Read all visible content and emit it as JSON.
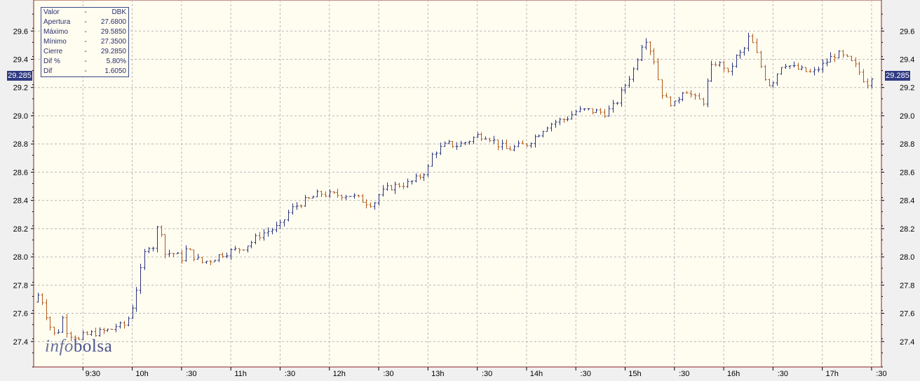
{
  "legend": {
    "rows": [
      {
        "k": "Valor",
        "v": "DBK"
      },
      {
        "k": "Apertura",
        "v": "27.6800"
      },
      {
        "k": "Máximo",
        "v": "29.5850"
      },
      {
        "k": "Mínimo",
        "v": "27.3500"
      },
      {
        "k": "Cierre",
        "v": "29.2850"
      },
      {
        "k": "Dif %",
        "v": "5.80%"
      },
      {
        "k": "Dif",
        "v": "1.6050"
      }
    ],
    "dash": "-"
  },
  "last_price_label": "29.285",
  "brand": {
    "part1": "info",
    "part2": "bolsa"
  },
  "colors": {
    "background": "#fffcf0",
    "frame": "#8b2020",
    "up": "#2a3580",
    "down": "#b05a1a",
    "grid": "#b8b8b8",
    "badge": "#2f3a82"
  },
  "chart_data": {
    "type": "ohlc",
    "title": "",
    "xlabel": "",
    "ylabel": "",
    "ylim": [
      27.22,
      29.82
    ],
    "grid": true,
    "y_ticks": [
      "27.4",
      "27.6",
      "27.8",
      "28.0",
      "28.2",
      "28.4",
      "28.6",
      "28.8",
      "29.0",
      "29.2",
      "29.4",
      "29.6"
    ],
    "x_tick_labels": [
      "9:30",
      "10h",
      ":30",
      "11h",
      ":30",
      "12h",
      ":30",
      "13h",
      ":30",
      "14h",
      ":30",
      "15h",
      ":30",
      "16h",
      ":30",
      "17h",
      ":30"
    ],
    "x_tick_times": [
      9.5,
      10,
      10.5,
      11,
      11.5,
      12,
      12.5,
      13,
      13.5,
      14,
      14.5,
      15,
      15.5,
      16,
      16.5,
      17,
      17.5
    ],
    "time_range": [
      9.0,
      17.6
    ],
    "price_path": [
      [
        9.0,
        27.68
      ],
      [
        9.05,
        27.74
      ],
      [
        9.1,
        27.66
      ],
      [
        9.15,
        27.52
      ],
      [
        9.2,
        27.48
      ],
      [
        9.23,
        27.38
      ],
      [
        9.27,
        27.58
      ],
      [
        9.3,
        27.56
      ],
      [
        9.35,
        27.44
      ],
      [
        9.4,
        27.46
      ],
      [
        9.45,
        27.4
      ],
      [
        9.5,
        27.44
      ],
      [
        9.6,
        27.46
      ],
      [
        9.7,
        27.47
      ],
      [
        9.8,
        27.49
      ],
      [
        9.85,
        27.52
      ],
      [
        9.9,
        27.5
      ],
      [
        9.95,
        27.55
      ],
      [
        10.0,
        27.65
      ],
      [
        10.05,
        27.8
      ],
      [
        10.1,
        27.95
      ],
      [
        10.15,
        28.1
      ],
      [
        10.2,
        28.05
      ],
      [
        10.25,
        28.2
      ],
      [
        10.28,
        28.25
      ],
      [
        10.32,
        28.02
      ],
      [
        10.4,
        28.03
      ],
      [
        10.5,
        27.99
      ],
      [
        10.55,
        28.06
      ],
      [
        10.6,
        28.02
      ],
      [
        10.7,
        27.96
      ],
      [
        10.8,
        27.98
      ],
      [
        10.9,
        28.02
      ],
      [
        11.0,
        28.04
      ],
      [
        11.1,
        28.06
      ],
      [
        11.2,
        28.1
      ],
      [
        11.3,
        28.16
      ],
      [
        11.4,
        28.19
      ],
      [
        11.5,
        28.22
      ],
      [
        11.6,
        28.33
      ],
      [
        11.7,
        28.38
      ],
      [
        11.8,
        28.41
      ],
      [
        11.9,
        28.45
      ],
      [
        12.0,
        28.44
      ],
      [
        12.1,
        28.44
      ],
      [
        12.2,
        28.44
      ],
      [
        12.3,
        28.41
      ],
      [
        12.4,
        28.38
      ],
      [
        12.45,
        28.38
      ],
      [
        12.5,
        28.44
      ],
      [
        12.6,
        28.49
      ],
      [
        12.7,
        28.51
      ],
      [
        12.8,
        28.52
      ],
      [
        12.9,
        28.56
      ],
      [
        13.0,
        28.63
      ],
      [
        13.05,
        28.74
      ],
      [
        13.1,
        28.76
      ],
      [
        13.2,
        28.8
      ],
      [
        13.3,
        28.79
      ],
      [
        13.4,
        28.82
      ],
      [
        13.5,
        28.86
      ],
      [
        13.6,
        28.86
      ],
      [
        13.7,
        28.8
      ],
      [
        13.8,
        28.76
      ],
      [
        13.9,
        28.78
      ],
      [
        14.0,
        28.8
      ],
      [
        14.1,
        28.86
      ],
      [
        14.2,
        28.93
      ],
      [
        14.3,
        28.96
      ],
      [
        14.4,
        28.98
      ],
      [
        14.5,
        29.03
      ],
      [
        14.6,
        29.04
      ],
      [
        14.7,
        29.03
      ],
      [
        14.8,
        29.02
      ],
      [
        14.9,
        29.08
      ],
      [
        15.0,
        29.22
      ],
      [
        15.1,
        29.35
      ],
      [
        15.15,
        29.48
      ],
      [
        15.2,
        29.56
      ],
      [
        15.3,
        29.38
      ],
      [
        15.35,
        29.2
      ],
      [
        15.4,
        29.12
      ],
      [
        15.5,
        29.08
      ],
      [
        15.6,
        29.2
      ],
      [
        15.7,
        29.12
      ],
      [
        15.8,
        29.1
      ],
      [
        15.85,
        29.3
      ],
      [
        15.9,
        29.38
      ],
      [
        16.0,
        29.35
      ],
      [
        16.05,
        29.28
      ],
      [
        16.1,
        29.4
      ],
      [
        16.2,
        29.46
      ],
      [
        16.25,
        29.55
      ],
      [
        16.3,
        29.5
      ],
      [
        16.4,
        29.3
      ],
      [
        16.45,
        29.22
      ],
      [
        16.5,
        29.25
      ],
      [
        16.6,
        29.38
      ],
      [
        16.7,
        29.34
      ],
      [
        16.8,
        29.32
      ],
      [
        16.9,
        29.3
      ],
      [
        17.0,
        29.36
      ],
      [
        17.1,
        29.42
      ],
      [
        17.15,
        29.44
      ],
      [
        17.25,
        29.4
      ],
      [
        17.35,
        29.34
      ],
      [
        17.45,
        29.22
      ],
      [
        17.5,
        29.285
      ]
    ]
  }
}
